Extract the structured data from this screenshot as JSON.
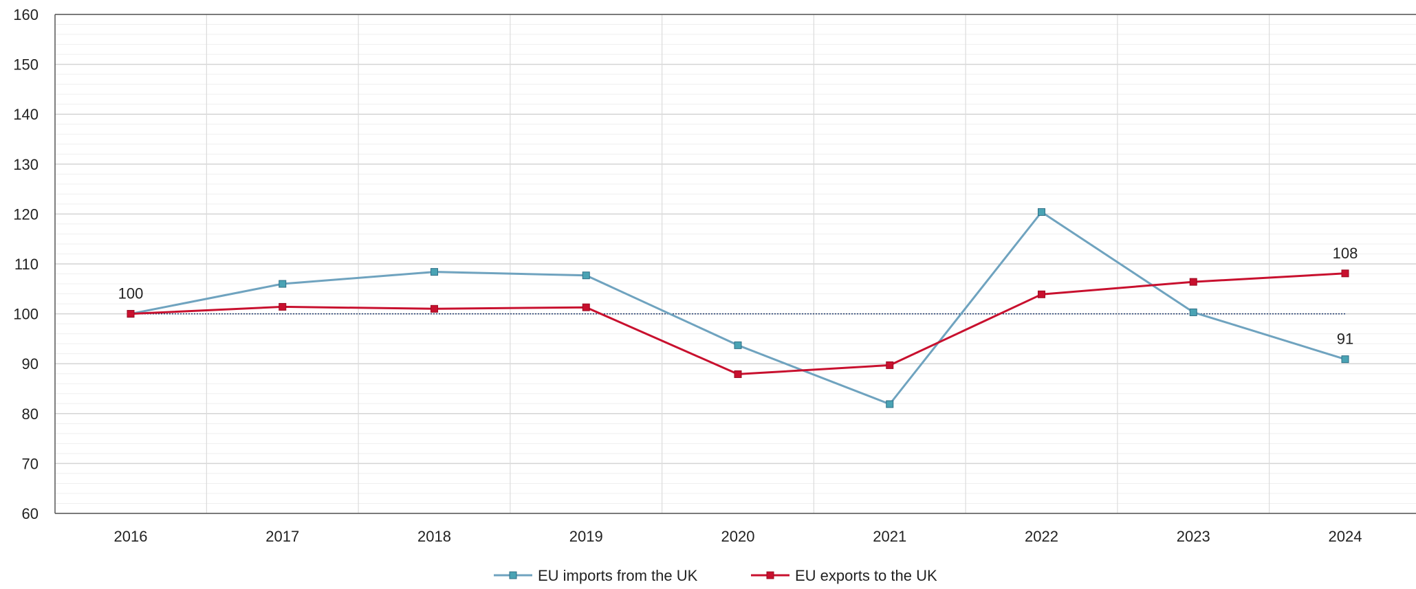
{
  "chart_data": {
    "type": "line",
    "categories": [
      "2016",
      "2017",
      "2018",
      "2019",
      "2020",
      "2021",
      "2022",
      "2023",
      "2024"
    ],
    "ylim": [
      60,
      160
    ],
    "yticks": [
      60,
      70,
      80,
      90,
      100,
      110,
      120,
      130,
      140,
      150,
      160
    ],
    "grid": true,
    "reference_line": 100,
    "legend_position": "bottom",
    "series": [
      {
        "name": "EU imports from the UK",
        "color": "#6fa3bf",
        "marker_color": "#4aa3b4",
        "values": [
          100,
          106,
          108.4,
          107.7,
          93.7,
          81.9,
          120.4,
          100.3,
          90.9
        ]
      },
      {
        "name": "EU exports to the UK",
        "color": "#c8102e",
        "marker_color": "#c8102e",
        "values": [
          100,
          101.4,
          101,
          101.3,
          87.9,
          89.7,
          103.9,
          106.4,
          108.1
        ]
      }
    ],
    "annotations": [
      {
        "text": "100",
        "category": "2016",
        "value": 100,
        "position": "above"
      },
      {
        "text": "108",
        "category": "2024",
        "value": 108.1,
        "position": "above"
      },
      {
        "text": "91",
        "category": "2024",
        "value": 90.9,
        "position": "above"
      }
    ]
  }
}
